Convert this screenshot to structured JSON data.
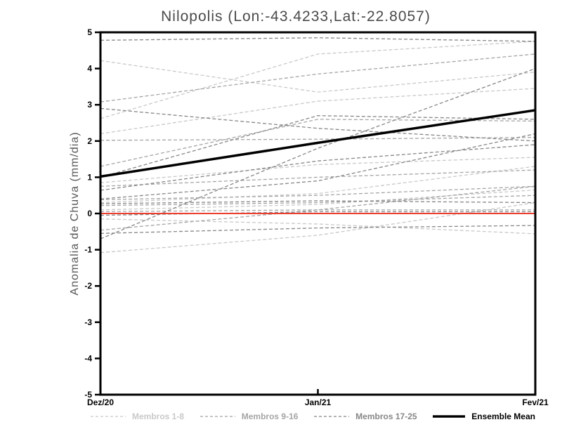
{
  "chart_data": {
    "type": "line",
    "title": "Nilopolis (Lon:-43.4233,Lat:-22.8057)",
    "ylabel": "Anomalia de Chuva (mm/dia)",
    "x_categories": [
      "Dez/20",
      "Jan/21",
      "Fev/21"
    ],
    "ylim": [
      -5,
      5
    ],
    "y_ticks": [
      5,
      4,
      3,
      2,
      1,
      0,
      -1,
      -2,
      -3,
      -4,
      -5
    ],
    "grid": false,
    "legend_position": "bottom",
    "zero_line": {
      "value": 0,
      "color": "#ee3d30"
    },
    "groups": [
      {
        "name": "Membros 1-8",
        "color": "#c9c9c9",
        "members": [
          [
            4.22,
            3.35,
            3.9
          ],
          [
            2.62,
            4.4,
            4.75
          ],
          [
            0.85,
            1.35,
            1.55
          ],
          [
            0.3,
            0.55,
            1.3
          ],
          [
            0.1,
            0.25,
            0.65
          ],
          [
            -0.15,
            -0.29,
            -0.56
          ],
          [
            -1.08,
            -0.6,
            0.3
          ],
          [
            2.2,
            3.1,
            3.45
          ]
        ]
      },
      {
        "name": "Membros 9-16",
        "color": "#a5a5a5",
        "members": [
          [
            3.08,
            3.85,
            4.4
          ],
          [
            2.02,
            2.05,
            2.1
          ],
          [
            0.75,
            1.0,
            1.2
          ],
          [
            0.38,
            0.5,
            0.75
          ],
          [
            0.22,
            0.3,
            0.5
          ],
          [
            0.05,
            0.1,
            0.1
          ],
          [
            1.3,
            2.6,
            2.55
          ],
          [
            -0.46,
            0.1,
            0.75
          ]
        ]
      },
      {
        "name": "Membros 17-25",
        "color": "#878787",
        "members": [
          [
            4.78,
            4.85,
            4.75
          ],
          [
            2.9,
            2.35,
            2.0
          ],
          [
            -0.7,
            1.8,
            4.0
          ],
          [
            0.64,
            1.45,
            1.9
          ],
          [
            0.27,
            0.35,
            0.3
          ],
          [
            -0.05,
            0.05,
            0.05
          ],
          [
            -0.55,
            -0.4,
            -0.33
          ],
          [
            0.4,
            0.9,
            2.2
          ],
          [
            1.0,
            2.7,
            2.6
          ]
        ]
      }
    ],
    "ensemble_mean": {
      "name": "Ensemble Mean",
      "color": "#000000",
      "values": [
        1.02,
        1.95,
        2.85
      ]
    }
  }
}
